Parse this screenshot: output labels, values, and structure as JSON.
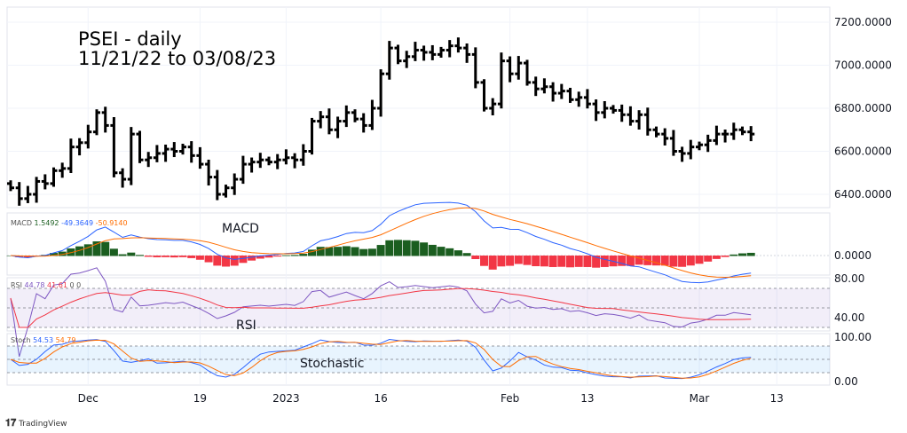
{
  "title": {
    "line1": "PSEI - daily",
    "line2": "11/21/22 to 03/08/23"
  },
  "branding": "TradingView",
  "chart_data": {
    "type": "ohlc",
    "title": "PSEI - daily 11/21/22 to 03/08/23",
    "ylim": [
      6340,
      7260
    ],
    "y_ticks": [
      "7200.0000",
      "7000.0000",
      "6800.0000",
      "6600.0000",
      "6400.0000"
    ],
    "y_tick_values": [
      7200,
      7000,
      6800,
      6600,
      6400
    ],
    "x_ticks": [
      {
        "label": "Dec",
        "bar": 9
      },
      {
        "label": "19",
        "bar": 22
      },
      {
        "label": "2023",
        "bar": 32
      },
      {
        "label": "16",
        "bar": 43
      },
      {
        "label": "Feb",
        "bar": 58
      },
      {
        "label": "13",
        "bar": 67
      },
      {
        "label": "Mar",
        "bar": 80
      },
      {
        "label": "13",
        "bar": 89
      }
    ],
    "close": [
      6430,
      6380,
      6400,
      6460,
      6450,
      6510,
      6520,
      6620,
      6640,
      6690,
      6780,
      6720,
      6500,
      6470,
      6680,
      6560,
      6570,
      6590,
      6610,
      6600,
      6620,
      6580,
      6540,
      6480,
      6400,
      6430,
      6470,
      6540,
      6550,
      6560,
      6550,
      6560,
      6570,
      6560,
      6600,
      6740,
      6760,
      6700,
      6740,
      6780,
      6750,
      6720,
      6800,
      6960,
      7080,
      7020,
      7040,
      7070,
      7060,
      7050,
      7070,
      7090,
      7080,
      7050,
      6920,
      6800,
      6820,
      7020,
      6960,
      7010,
      6920,
      6890,
      6900,
      6870,
      6880,
      6840,
      6850,
      6820,
      6780,
      6800,
      6790,
      6770,
      6740,
      6770,
      6700,
      6680,
      6660,
      6600,
      6590,
      6620,
      6630,
      6650,
      6680,
      6680,
      6700,
      6690,
      6680
    ],
    "indicators": {
      "macd": {
        "label": "MACD",
        "histogram": "1.5492",
        "macd": "-49.3649",
        "signal": "-50.9140",
        "axis_tick": "0.0000",
        "annotation": "MACD"
      },
      "rsi": {
        "label": "RSI",
        "value": "44.78",
        "ma": "41.61",
        "extra1": "0",
        "extra2": "0",
        "axis_ticks": [
          "80.00",
          "40.00"
        ],
        "annotation": "RSI"
      },
      "stoch": {
        "label": "Stoch",
        "k": "54.53",
        "d": "54.79",
        "axis_ticks": [
          "100.00",
          "0.00"
        ],
        "annotation": "Stochastic"
      }
    },
    "colors": {
      "bar": "#000000",
      "macd": "#2962ff",
      "signal": "#ff6d00",
      "hist_pos": "#1b5e20",
      "hist_neg": "#f23645",
      "rsi": "#7e57c2",
      "rsi_ma": "#f23645",
      "stoch_k": "#2962ff",
      "stoch_d": "#ff6d00"
    }
  }
}
